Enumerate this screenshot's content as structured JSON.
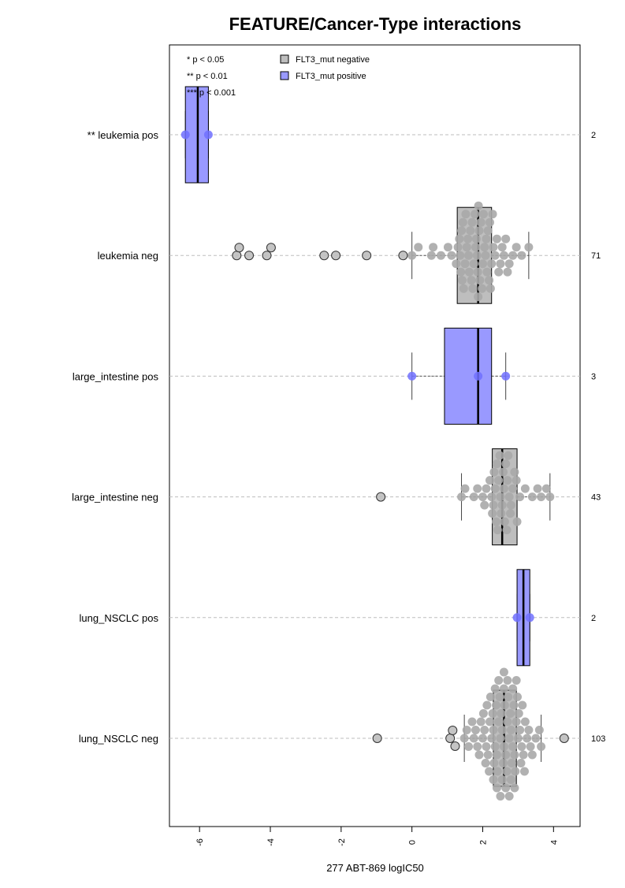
{
  "chart_data": {
    "type": "box",
    "title": "FEATURE/Cancer-Type interactions",
    "xlabel": "277 ABT-869 logIC50",
    "xlim": [
      -6.85,
      4.75
    ],
    "xticks": [
      -6,
      -4,
      -2,
      0,
      2,
      4
    ],
    "xtick_labels": [
      "-6",
      "-4",
      "-2",
      "0",
      "2",
      "4"
    ],
    "grid": "dashed horizontal line per group",
    "significance_legend": [
      "* p < 0.05",
      "** p < 0.01",
      "*** p < 0.001"
    ],
    "legend": {
      "placement": "top-left",
      "entries": [
        {
          "label": "FLT3_mut negative",
          "color": "#bebebe"
        },
        {
          "label": "FLT3_mut positive",
          "color": "#9999ff"
        }
      ]
    },
    "colors": {
      "negative_box": "#bebebe",
      "positive_box": "#9999ff",
      "negative_point": "#a8a8a8",
      "positive_point": "#7070ff",
      "gridline": "#bdbdbd"
    },
    "groups": [
      {
        "label": "** leukemia pos",
        "count": "2",
        "status": "positive",
        "box": {
          "q1": -6.4,
          "median": -6.05,
          "q3": -5.75,
          "whisker_low": -6.4,
          "whisker_high": -5.75
        },
        "points": [
          -6.4,
          -5.75
        ],
        "outliers": []
      },
      {
        "label": "leukemia neg",
        "count": "71",
        "status": "negative",
        "box": {
          "q1": 1.28,
          "median": 1.87,
          "q3": 2.25,
          "whisker_low": 0.0,
          "whisker_high": 3.3
        },
        "points": [
          0.0,
          0.18,
          0.55,
          0.6,
          0.82,
          1.02,
          1.12,
          1.25,
          1.3,
          1.34,
          1.36,
          1.38,
          1.4,
          1.42,
          1.44,
          1.46,
          1.5,
          1.52,
          1.55,
          1.58,
          1.6,
          1.62,
          1.65,
          1.68,
          1.7,
          1.72,
          1.75,
          1.78,
          1.8,
          1.82,
          1.84,
          1.86,
          1.87,
          1.88,
          1.9,
          1.92,
          1.95,
          1.98,
          2.0,
          2.02,
          2.05,
          2.08,
          2.1,
          2.12,
          2.15,
          2.18,
          2.2,
          2.22,
          2.25,
          2.28,
          2.3,
          2.35,
          2.4,
          2.45,
          2.5,
          2.55,
          2.6,
          2.65,
          2.7,
          2.75,
          2.85,
          2.95,
          3.1,
          3.3
        ],
        "outliers": [
          -4.95,
          -4.88,
          -4.6,
          -4.1,
          -3.98,
          -2.48,
          -2.15,
          -1.28,
          -0.25
        ]
      },
      {
        "label": "large_intestine pos",
        "count": "3",
        "status": "positive",
        "box": {
          "q1": 0.92,
          "median": 1.87,
          "q3": 2.25,
          "whisker_low": 0.0,
          "whisker_high": 2.65
        },
        "points": [
          0.0,
          1.87,
          2.65
        ],
        "outliers": []
      },
      {
        "label": "large_intestine neg",
        "count": "43",
        "status": "negative",
        "box": {
          "q1": 2.27,
          "median": 2.55,
          "q3": 2.97,
          "whisker_low": 1.4,
          "whisker_high": 3.9
        },
        "points": [
          1.4,
          1.5,
          1.75,
          1.85,
          2.0,
          2.05,
          2.1,
          2.2,
          2.25,
          2.27,
          2.3,
          2.32,
          2.35,
          2.38,
          2.4,
          2.42,
          2.45,
          2.48,
          2.5,
          2.52,
          2.55,
          2.58,
          2.6,
          2.62,
          2.65,
          2.68,
          2.7,
          2.72,
          2.75,
          2.78,
          2.8,
          2.85,
          2.9,
          2.95,
          2.97,
          3.05,
          3.2,
          3.4,
          3.55,
          3.65,
          3.8,
          3.9
        ],
        "outliers": [
          -0.88
        ]
      },
      {
        "label": "lung_NSCLC pos",
        "count": "2",
        "status": "positive",
        "box": {
          "q1": 2.97,
          "median": 3.15,
          "q3": 3.33,
          "whisker_low": 2.97,
          "whisker_high": 3.33
        },
        "points": [
          2.97,
          3.33
        ],
        "outliers": []
      },
      {
        "label": "lung_NSCLC neg",
        "count": "103",
        "status": "negative",
        "box": {
          "q1": 2.3,
          "median": 2.6,
          "q3": 2.95,
          "whisker_low": 1.48,
          "whisker_high": 3.65
        },
        "points": [
          1.48,
          1.55,
          1.6,
          1.7,
          1.75,
          1.8,
          1.85,
          1.9,
          1.95,
          2.0,
          2.02,
          2.05,
          2.08,
          2.1,
          2.12,
          2.15,
          2.18,
          2.2,
          2.22,
          2.25,
          2.28,
          2.3,
          2.3,
          2.32,
          2.35,
          2.35,
          2.38,
          2.4,
          2.4,
          2.42,
          2.45,
          2.45,
          2.48,
          2.5,
          2.5,
          2.52,
          2.55,
          2.55,
          2.58,
          2.6,
          2.6,
          2.6,
          2.62,
          2.65,
          2.65,
          2.68,
          2.7,
          2.7,
          2.72,
          2.75,
          2.75,
          2.78,
          2.8,
          2.8,
          2.82,
          2.85,
          2.85,
          2.88,
          2.9,
          2.9,
          2.92,
          2.95,
          2.95,
          2.98,
          3.0,
          3.02,
          3.05,
          3.08,
          3.1,
          3.12,
          3.15,
          3.18,
          3.2,
          3.25,
          3.3,
          3.35,
          3.4,
          3.5,
          3.6,
          3.65
        ],
        "outliers": [
          -0.98,
          1.08,
          1.15,
          1.22,
          4.3
        ]
      }
    ]
  }
}
